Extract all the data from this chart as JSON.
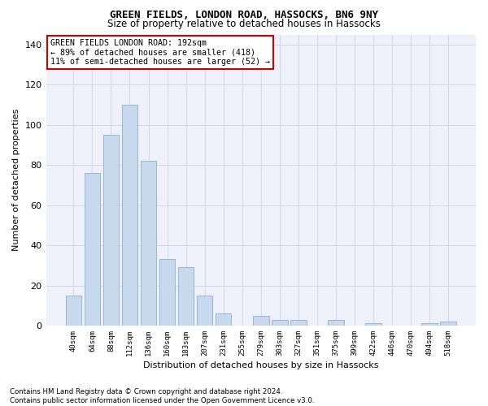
{
  "title": "GREEN FIELDS, LONDON ROAD, HASSOCKS, BN6 9NY",
  "subtitle": "Size of property relative to detached houses in Hassocks",
  "xlabel": "Distribution of detached houses by size in Hassocks",
  "ylabel": "Number of detached properties",
  "bar_color": "#c8d9ee",
  "bar_edge_color": "#8ab0d4",
  "background_color": "#eef1f9",
  "categories": [
    "40sqm",
    "64sqm",
    "88sqm",
    "112sqm",
    "136sqm",
    "160sqm",
    "183sqm",
    "207sqm",
    "231sqm",
    "255sqm",
    "279sqm",
    "303sqm",
    "327sqm",
    "351sqm",
    "375sqm",
    "399sqm",
    "422sqm",
    "446sqm",
    "470sqm",
    "494sqm",
    "518sqm"
  ],
  "values": [
    15,
    76,
    95,
    110,
    82,
    33,
    29,
    15,
    6,
    0,
    5,
    3,
    3,
    0,
    3,
    0,
    1,
    0,
    0,
    1,
    2
  ],
  "ylim": [
    0,
    145
  ],
  "yticks": [
    0,
    20,
    40,
    60,
    80,
    100,
    120,
    140
  ],
  "annotation_line1": "GREEN FIELDS LONDON ROAD: 192sqm",
  "annotation_line2": "← 89% of detached houses are smaller (418)",
  "annotation_line3": "11% of semi-detached houses are larger (52) →",
  "footnote": "Contains HM Land Registry data © Crown copyright and database right 2024.\nContains public sector information licensed under the Open Government Licence v3.0.",
  "grid_color": "#d0d5e8"
}
